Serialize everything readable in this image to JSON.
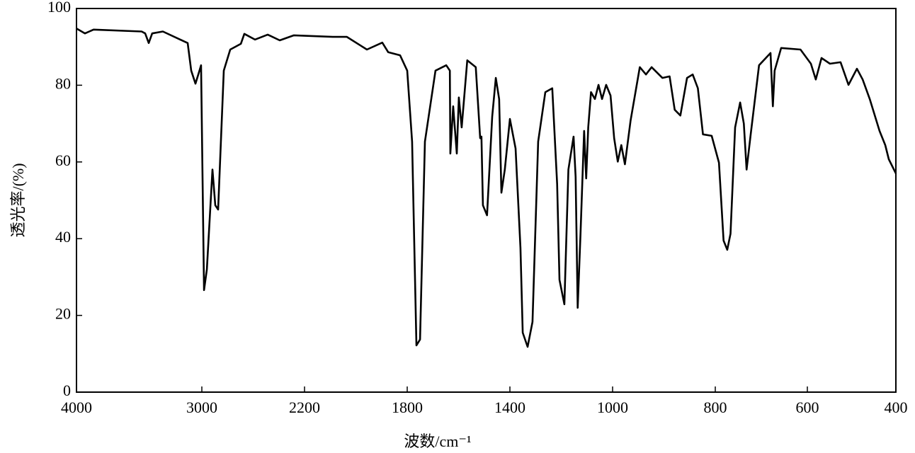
{
  "chart_data": {
    "type": "line",
    "xlabel": "波数/cm⁻¹",
    "ylabel": "透光率/(%)",
    "xlim": [
      4000,
      400
    ],
    "xticks": [
      4000,
      3000,
      2200,
      1800,
      1400,
      1000,
      800,
      600,
      400
    ],
    "ylim": [
      0,
      100
    ],
    "yticks": [
      0,
      20,
      40,
      60,
      80,
      100
    ],
    "series": [
      {
        "color": "#000000",
        "x": [
          4000,
          3932,
          3864,
          3480,
          3452,
          3424,
          3396,
          3311,
          3113,
          3085,
          3051,
          3028,
          3006,
          2983,
          2961,
          2917,
          2895,
          2873,
          2829,
          2779,
          2696,
          2669,
          2586,
          2487,
          2393,
          2283,
          2090,
          2035,
          1957,
          1897,
          1874,
          1828,
          1800,
          1781,
          1764,
          1750,
          1731,
          1690,
          1648,
          1634,
          1632,
          1621,
          1607,
          1599,
          1588,
          1566,
          1533,
          1516,
          1511,
          1505,
          1489,
          1469,
          1455,
          1442,
          1433,
          1420,
          1400,
          1378,
          1359,
          1350,
          1331,
          1312,
          1290,
          1262,
          1235,
          1216,
          1207,
          1188,
          1172,
          1152,
          1144,
          1136,
          1125,
          1111,
          1103,
          1095,
          1084,
          1069,
          1055,
          1041,
          1025,
          1008,
          997,
          990,
          983,
          976,
          965,
          947,
          935,
          924,
          903,
          889,
          879,
          868,
          855,
          844,
          834,
          824,
          807,
          792,
          782,
          774,
          767,
          757,
          746,
          738,
          732,
          723,
          705,
          680,
          675,
          671,
          657,
          615,
          592,
          581,
          568,
          549,
          525,
          507,
          488,
          475,
          459,
          437,
          424,
          416,
          400
        ],
        "values": [
          94.8,
          93.5,
          94.5,
          94,
          93.5,
          91,
          93.5,
          94,
          91,
          83.8,
          80.4,
          82.8,
          85.2,
          26.6,
          32,
          58,
          48.7,
          47.6,
          83.8,
          89.3,
          90.8,
          93.4,
          91.9,
          93.2,
          91.7,
          93,
          92.6,
          92.6,
          89.3,
          91.1,
          88.6,
          87.8,
          83.8,
          65.3,
          12.2,
          13.7,
          65.3,
          83.8,
          85.2,
          83.8,
          62.2,
          74.5,
          62.2,
          76.8,
          69,
          86.5,
          84.7,
          66.2,
          66.6,
          48.7,
          46.1,
          71.8,
          81.9,
          76.4,
          52,
          58,
          71.2,
          63.5,
          37.6,
          15.5,
          11.8,
          18.3,
          65.3,
          78.2,
          79.2,
          54.2,
          29.3,
          22.9,
          58,
          66.6,
          56.1,
          22,
          41.3,
          68.1,
          55.7,
          69,
          78.2,
          76.4,
          80.1,
          76.4,
          80.1,
          77.3,
          66.2,
          60.1,
          64.4,
          59.4,
          70.8,
          84.7,
          82.8,
          84.7,
          81.9,
          82.3,
          73.6,
          72.1,
          81.9,
          82.8,
          79.2,
          67.2,
          66.8,
          59.8,
          39.5,
          37.1,
          41.3,
          69,
          75.5,
          70,
          58,
          67.2,
          85.2,
          88.4,
          74.5,
          83.8,
          89.7,
          89.3,
          85.6,
          81.5,
          87.1,
          85.6,
          86,
          80.1,
          84.3,
          81.5,
          76.4,
          68.1,
          64.4,
          60.7,
          57
        ]
      }
    ]
  }
}
